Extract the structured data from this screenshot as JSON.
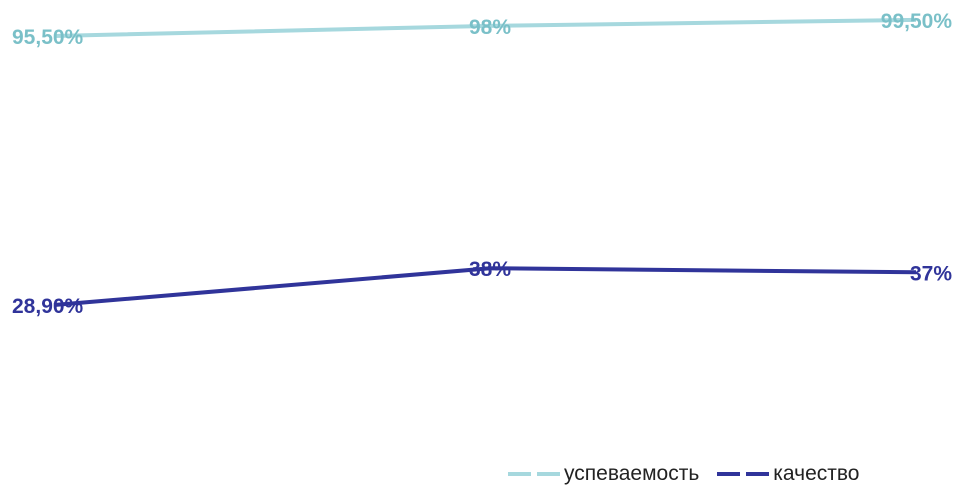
{
  "chart_data": {
    "type": "line",
    "categories": [
      "",
      "",
      ""
    ],
    "series": [
      {
        "name": "успеваемость",
        "color": "#a6d8de",
        "label_color": "#7ac0c8",
        "values": [
          95.5,
          98,
          99.5
        ],
        "labels": [
          "95,50%",
          "98%",
          "99,50%"
        ]
      },
      {
        "name": "качество",
        "color": "#30349a",
        "label_color": "#30349a",
        "values": [
          28.9,
          38,
          37
        ],
        "labels": [
          "28,90%",
          "38%",
          "37%"
        ]
      }
    ],
    "title": "",
    "xlabel": "",
    "ylabel": "",
    "ylim": [
      0,
      100
    ],
    "grid": false,
    "legend_position": "bottom-right"
  }
}
